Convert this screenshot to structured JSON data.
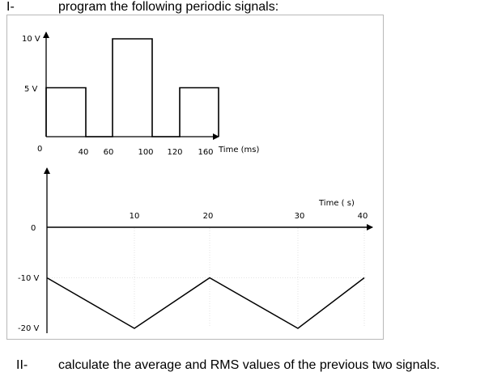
{
  "question_1": {
    "number": "I-",
    "text": "program the following periodic signals:"
  },
  "question_2": {
    "number": "II-",
    "text": "calculate the average and RMS values of the previous two signals."
  },
  "chart_data": [
    {
      "type": "line",
      "title": "",
      "xlabel": "Time (ms)",
      "ylabel": "",
      "x_ticks": [
        "40",
        "60",
        "100",
        "120",
        "160"
      ],
      "y_ticks": [
        "10 V",
        "5 V",
        "0"
      ],
      "x": [
        0,
        0,
        40,
        40,
        60,
        60,
        100,
        100,
        120,
        120,
        160,
        160
      ],
      "y": [
        0,
        5,
        5,
        0,
        0,
        10,
        10,
        0,
        0,
        5,
        5,
        0
      ],
      "xlim": [
        0,
        170
      ],
      "ylim": [
        0,
        10
      ]
    },
    {
      "type": "line",
      "title": "",
      "xlabel": "Time ( s)",
      "ylabel": "",
      "x_ticks": [
        "10",
        "20",
        "30",
        "40"
      ],
      "y_ticks": [
        "0",
        "-10 V",
        "-20 V"
      ],
      "x": [
        0,
        10,
        20,
        30,
        40
      ],
      "y": [
        -10,
        -20,
        -10,
        -20,
        -10
      ],
      "xlim": [
        0,
        40
      ],
      "ylim": [
        -20,
        0
      ]
    }
  ]
}
